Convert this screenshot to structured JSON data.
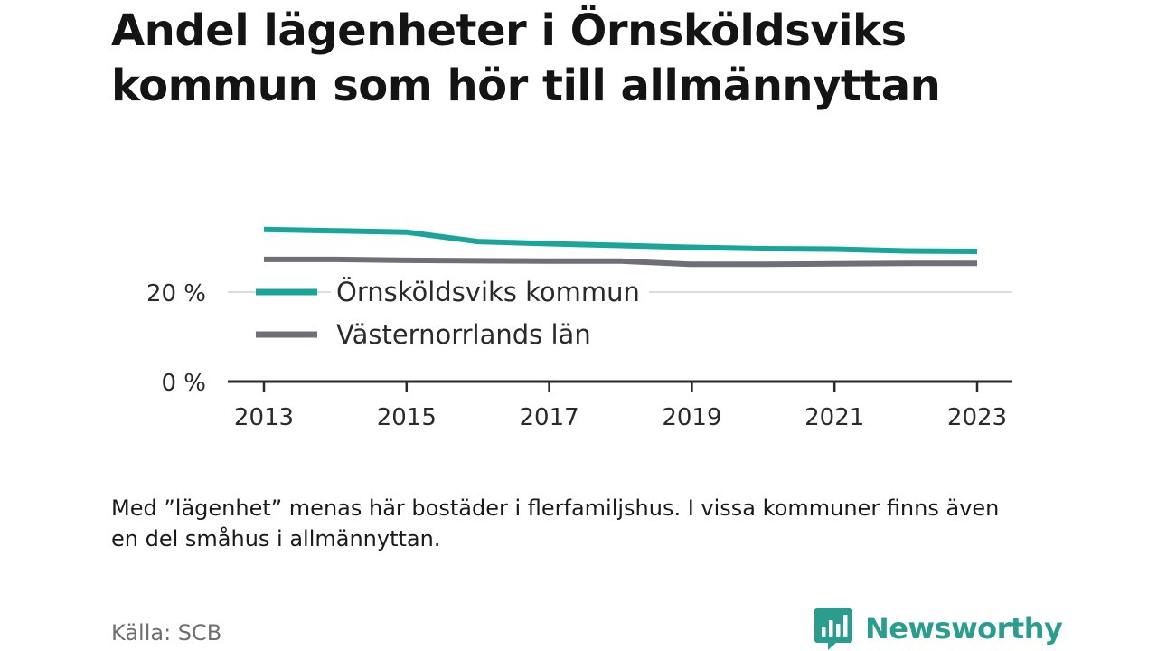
{
  "title": "Andel lägenheter i Örnsköldsviks kommun som hör till allmännyttan",
  "note": "Med ”lägenhet” menas här bostäder i flerfamiljshus. I vissa kommuner finns även en del småhus i allmännyttan.",
  "source": "Källa: SCB",
  "brand": {
    "name": "Newsworthy",
    "color": "#2a9d8f",
    "logo_icon": "bar-chart-speech-bubble-icon"
  },
  "chart_data": {
    "type": "line",
    "x": [
      2013,
      2014,
      2015,
      2016,
      2017,
      2018,
      2019,
      2020,
      2021,
      2022,
      2023
    ],
    "x_tick_labels": [
      "2013",
      "2015",
      "2017",
      "2019",
      "2021",
      "2023"
    ],
    "x_tick_values": [
      2013,
      2015,
      2017,
      2019,
      2021,
      2023
    ],
    "y_tick_labels": [
      "0 %",
      "20 %"
    ],
    "y_tick_values": [
      0,
      20
    ],
    "ylim": [
      0,
      40
    ],
    "xlim": [
      2012.5,
      2023.5
    ],
    "grid": "horizontal",
    "legend_position": "inside-left",
    "series": [
      {
        "name": "Örnsköldsviks kommun",
        "color": "#1aa59a",
        "values": [
          34.0,
          33.7,
          33.4,
          31.3,
          30.8,
          30.4,
          30.0,
          29.7,
          29.6,
          29.2,
          29.1
        ]
      },
      {
        "name": "Västernorrlands län",
        "color": "#6f6f76",
        "values": [
          27.3,
          27.3,
          27.1,
          27.0,
          26.9,
          26.9,
          26.2,
          26.2,
          26.3,
          26.4,
          26.4
        ]
      }
    ]
  }
}
